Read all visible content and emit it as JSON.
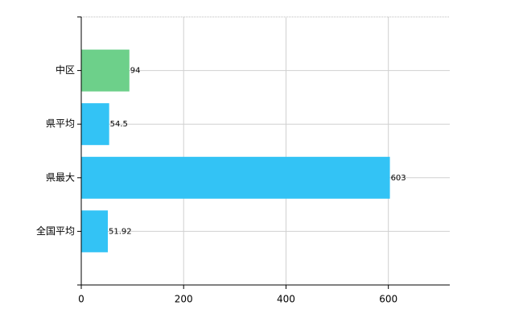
{
  "chart_data": {
    "type": "hbar",
    "categories": [
      "中区",
      "県平均",
      "県最大",
      "全国平均"
    ],
    "values": [
      94,
      54.5,
      603,
      51.92
    ],
    "colors": [
      "#6dd08a",
      "#33c3f5",
      "#33c3f5",
      "#33c3f5"
    ],
    "xlim": [
      0,
      720
    ],
    "xticks": [
      0,
      200,
      400,
      600
    ],
    "grid": true
  }
}
